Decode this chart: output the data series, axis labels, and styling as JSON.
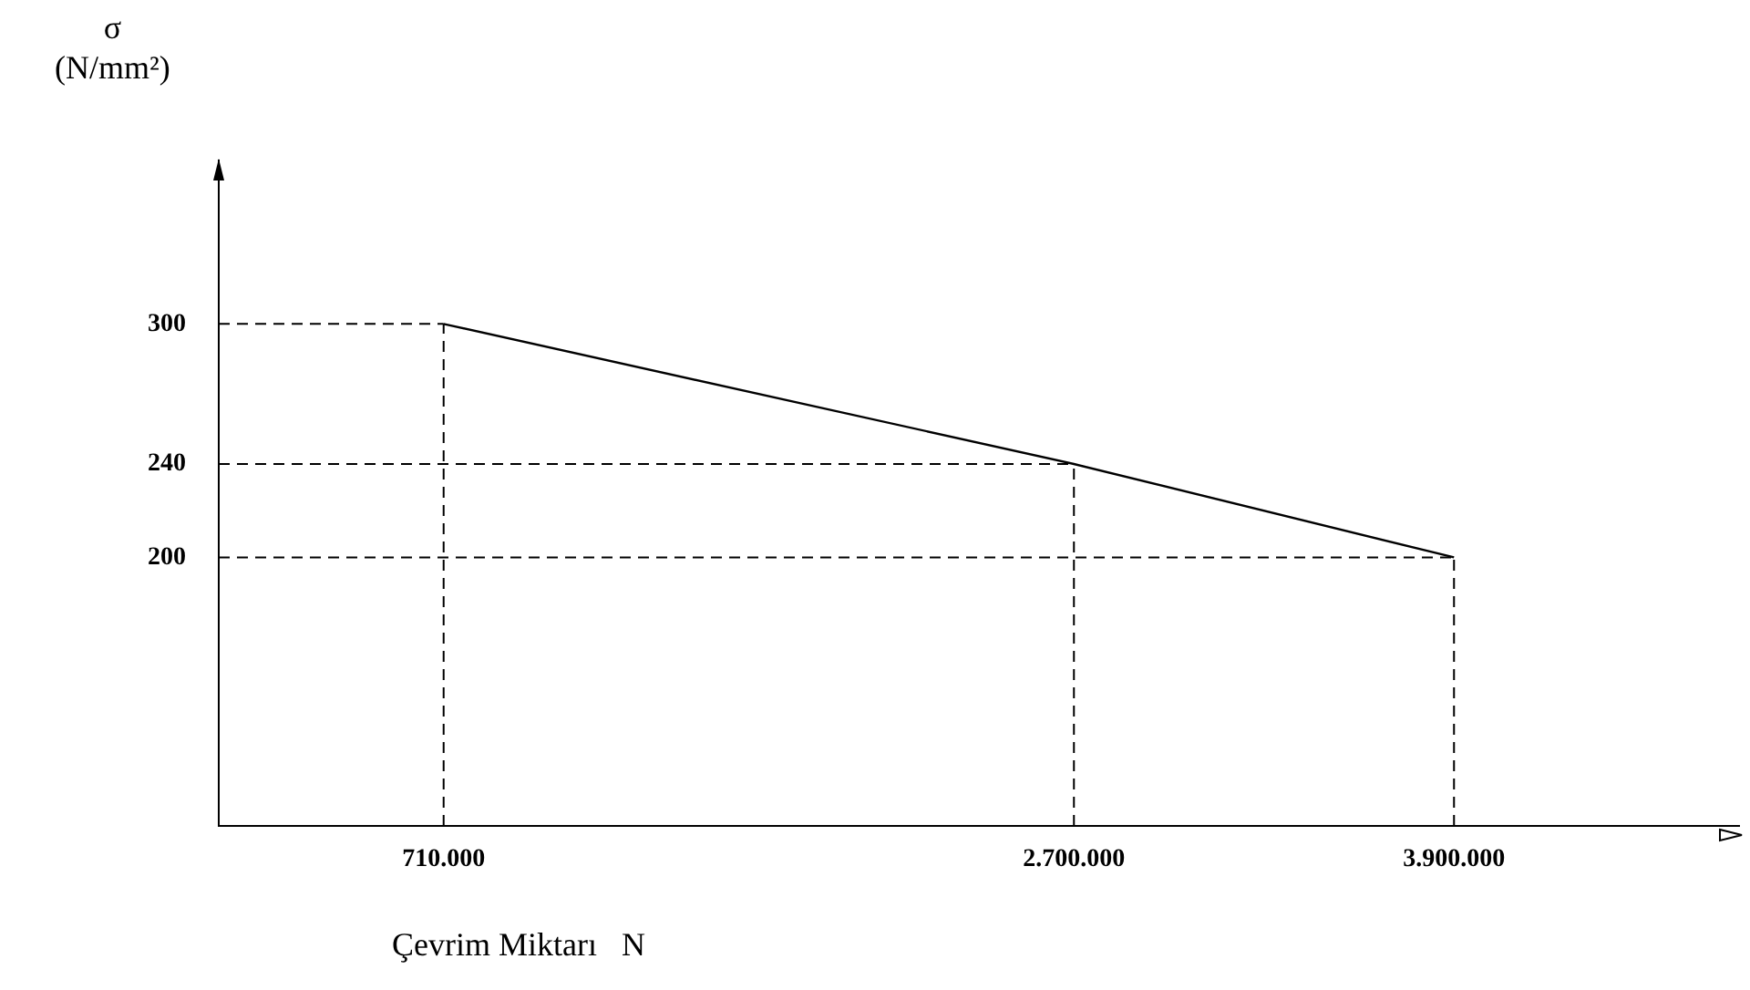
{
  "chart_data": {
    "type": "line",
    "xlabel": "Çevrim Miktarı   N",
    "ylabel": "σ (N/mm²)",
    "x": [
      710000,
      2700000,
      3900000
    ],
    "series": [
      {
        "color": "#000000",
        "values": [
          300,
          240,
          200
        ]
      }
    ],
    "xlim": [
      0,
      4800000
    ],
    "ylim": [
      85,
      370
    ],
    "xticks": [
      {
        "value": 710000,
        "label": "710.000"
      },
      {
        "value": 2700000,
        "label": "2.700.000"
      },
      {
        "value": 3900000,
        "label": "3.900.000"
      }
    ],
    "yticks": [
      200,
      240,
      300
    ],
    "ref_lines": [
      {
        "axis": "x",
        "value": 710000,
        "line_style": "dashed",
        "color": "#000000"
      },
      {
        "axis": "x",
        "value": 2700000,
        "line_style": "dashed",
        "color": "#000000"
      },
      {
        "axis": "x",
        "value": 3900000,
        "line_style": "dashed",
        "color": "#000000"
      },
      {
        "axis": "y",
        "value": 300,
        "line_style": "dashed",
        "color": "#000000"
      },
      {
        "axis": "y",
        "value": 240,
        "line_style": "dashed",
        "color": "#000000"
      },
      {
        "axis": "y",
        "value": 200,
        "line_style": "dashed",
        "color": "#000000"
      }
    ],
    "grid": false,
    "legend": false,
    "marker": "none",
    "line_style": "solid"
  }
}
